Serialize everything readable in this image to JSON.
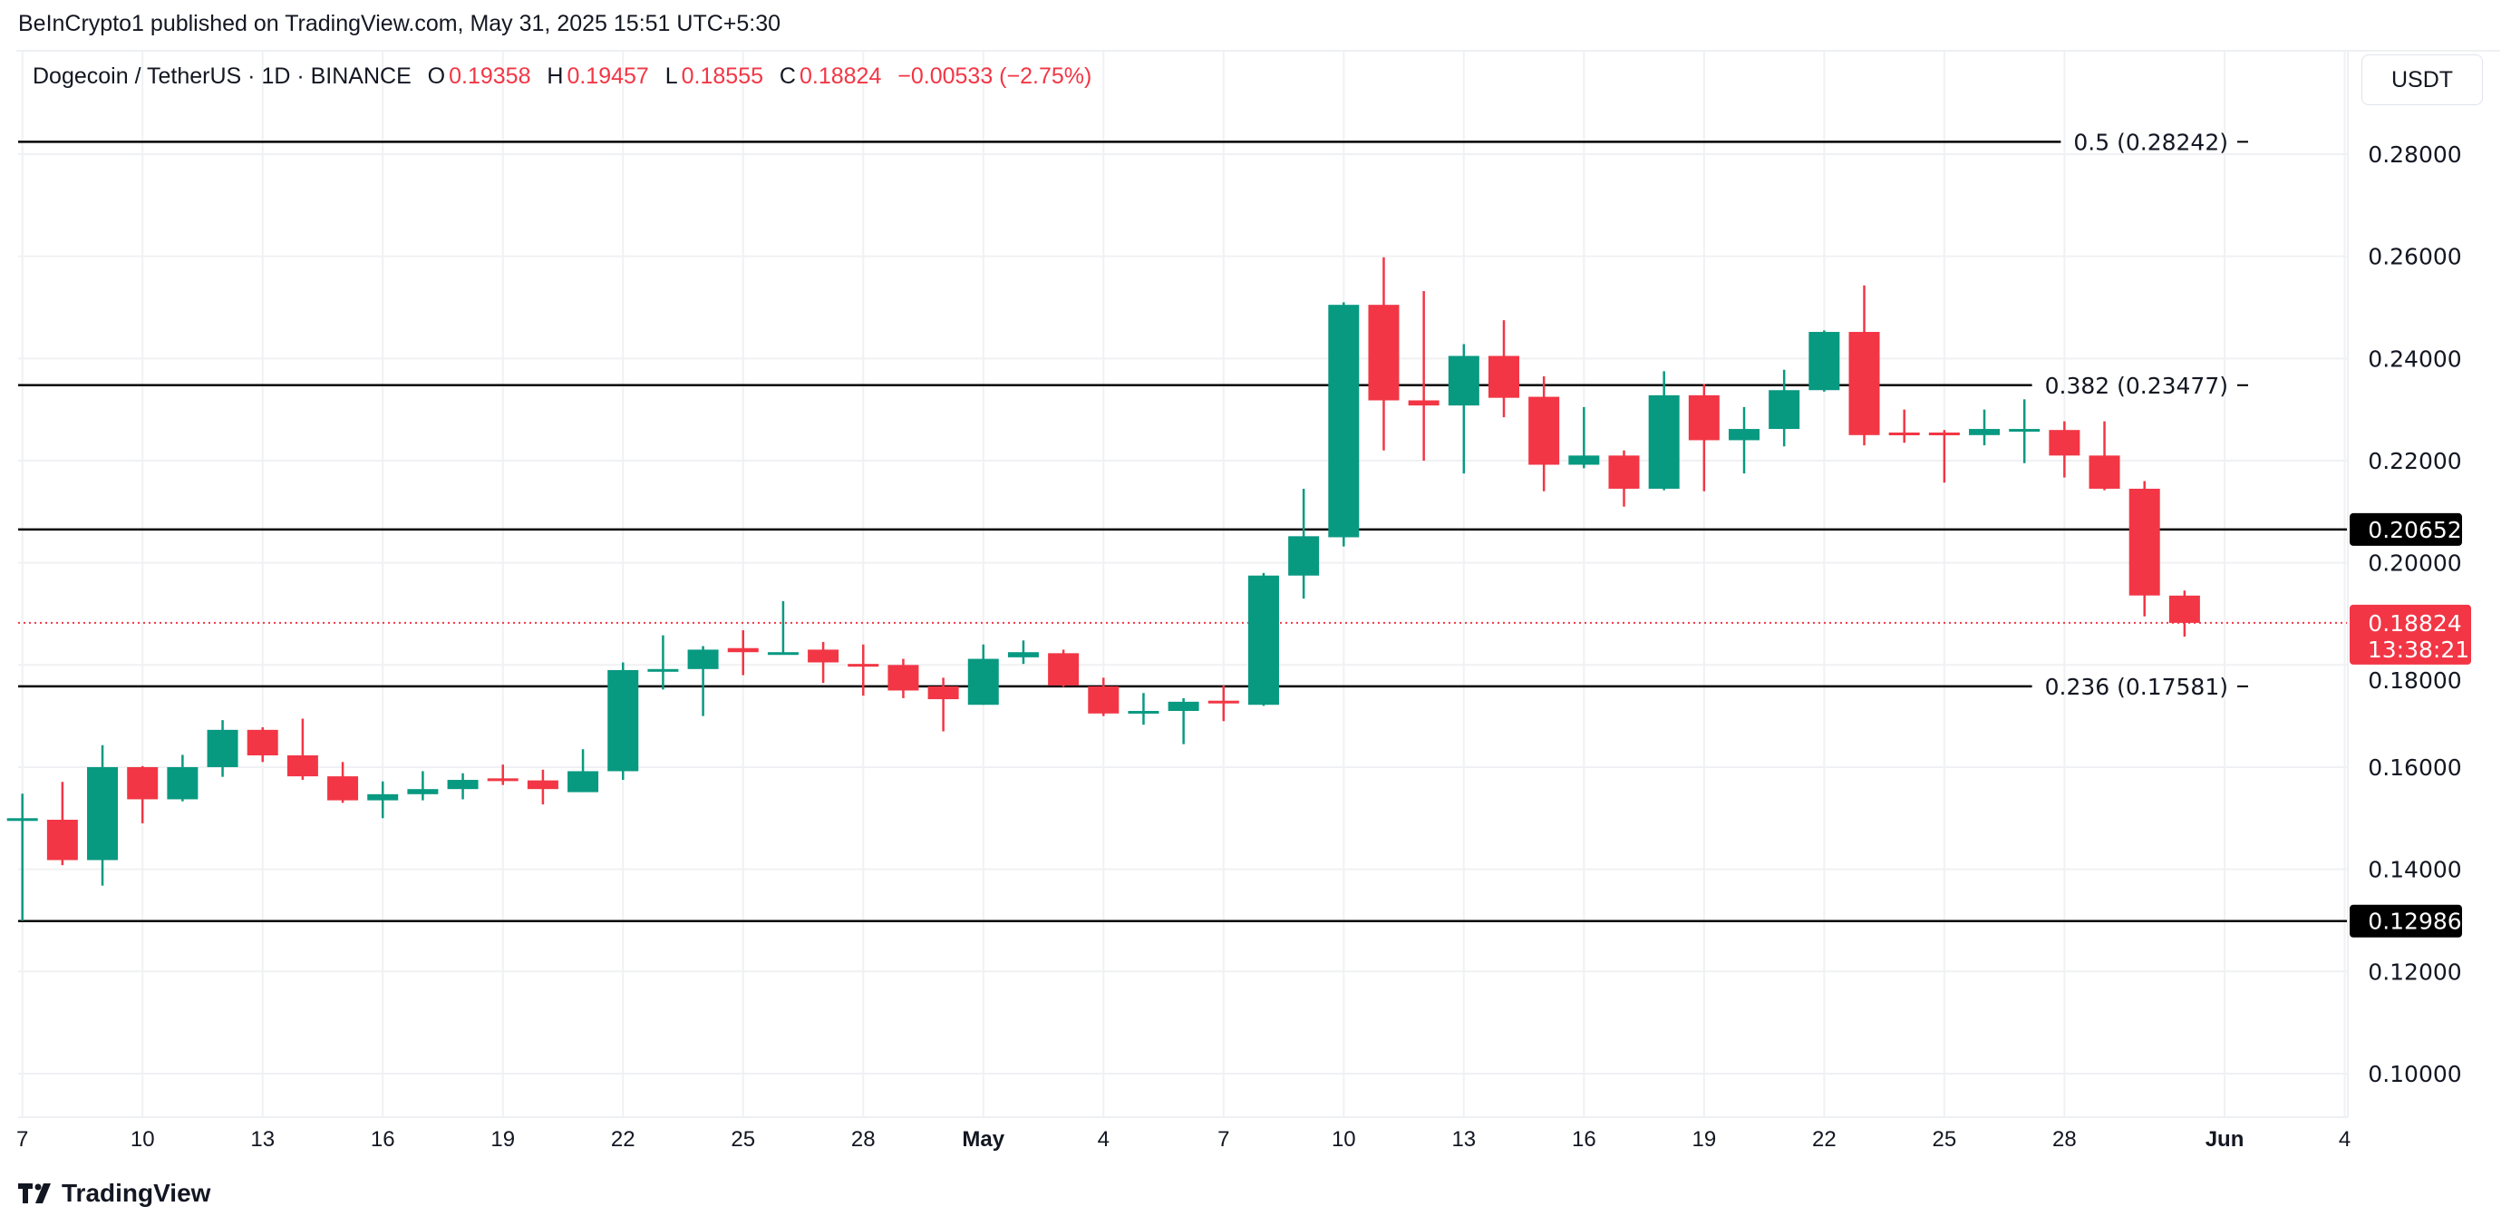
{
  "header": {
    "published": "BeInCrypto1 published on TradingView.com, May 31, 2025 15:51 UTC+5:30",
    "symbol": "Dogecoin / TetherUS · 1D · BINANCE",
    "o_label": "O",
    "o_value": "0.19358",
    "h_label": "H",
    "h_value": "0.19457",
    "l_label": "L",
    "l_value": "0.18555",
    "c_label": "C",
    "c_value": "0.18824",
    "change": "−0.00533 (−2.75%)",
    "currency": "USDT"
  },
  "footer": {
    "brand": "TradingView"
  },
  "colors": {
    "up": "#089981",
    "down": "#F23645",
    "level": "#000000",
    "grid": "#f0f1f3"
  },
  "chart_data": {
    "type": "candlestick",
    "title": "Dogecoin / TetherUS · 1D · BINANCE",
    "ylim": [
      0.092,
      0.298
    ],
    "y_ticks": [
      "0.28000",
      "0.26000",
      "0.24000",
      "0.22000",
      "0.20000",
      "0.18000",
      "0.16000",
      "0.14000",
      "0.12000",
      "0.10000"
    ],
    "x_ticks": [
      {
        "date": "2025-04-07",
        "label": "7"
      },
      {
        "date": "2025-04-10",
        "label": "10"
      },
      {
        "date": "2025-04-13",
        "label": "13"
      },
      {
        "date": "2025-04-16",
        "label": "16"
      },
      {
        "date": "2025-04-19",
        "label": "19"
      },
      {
        "date": "2025-04-22",
        "label": "22"
      },
      {
        "date": "2025-04-25",
        "label": "25"
      },
      {
        "date": "2025-04-28",
        "label": "28"
      },
      {
        "date": "2025-05-01",
        "label": "May"
      },
      {
        "date": "2025-05-04",
        "label": "4"
      },
      {
        "date": "2025-05-07",
        "label": "7"
      },
      {
        "date": "2025-05-10",
        "label": "10"
      },
      {
        "date": "2025-05-13",
        "label": "13"
      },
      {
        "date": "2025-05-16",
        "label": "16"
      },
      {
        "date": "2025-05-19",
        "label": "19"
      },
      {
        "date": "2025-05-22",
        "label": "22"
      },
      {
        "date": "2025-05-25",
        "label": "25"
      },
      {
        "date": "2025-05-28",
        "label": "28"
      },
      {
        "date": "2025-06-01",
        "label": "Jun"
      },
      {
        "date": "2025-06-04",
        "label": "4"
      }
    ],
    "grid": true,
    "fib_levels": [
      {
        "label": "0.5 (0.28242)",
        "value": 0.28242
      },
      {
        "label": "0.382 (0.23477)",
        "value": 0.23477
      },
      {
        "label": "0.236 (0.17581)",
        "value": 0.17581
      }
    ],
    "horizontal_levels": [
      {
        "label": "0.20652",
        "value": 0.20652
      },
      {
        "label": "0.12986",
        "value": 0.12986
      }
    ],
    "last_price": {
      "value": 0.18824,
      "label": "0.18824",
      "countdown": "13:38:21"
    },
    "candles": [
      {
        "date": "2025-04-07",
        "o": 0.1498,
        "h": 0.1548,
        "l": 0.1299,
        "c": 0.15
      },
      {
        "date": "2025-04-08",
        "o": 0.1497,
        "h": 0.1571,
        "l": 0.1408,
        "c": 0.1418
      },
      {
        "date": "2025-04-09",
        "o": 0.1418,
        "h": 0.1643,
        "l": 0.1368,
        "c": 0.16
      },
      {
        "date": "2025-04-10",
        "o": 0.16,
        "h": 0.1602,
        "l": 0.149,
        "c": 0.1537
      },
      {
        "date": "2025-04-11",
        "o": 0.1537,
        "h": 0.1624,
        "l": 0.1533,
        "c": 0.16
      },
      {
        "date": "2025-04-12",
        "o": 0.16,
        "h": 0.1692,
        "l": 0.1581,
        "c": 0.1673
      },
      {
        "date": "2025-04-13",
        "o": 0.1673,
        "h": 0.1678,
        "l": 0.161,
        "c": 0.1623
      },
      {
        "date": "2025-04-14",
        "o": 0.1623,
        "h": 0.1695,
        "l": 0.1575,
        "c": 0.1582
      },
      {
        "date": "2025-04-15",
        "o": 0.1582,
        "h": 0.161,
        "l": 0.153,
        "c": 0.1535
      },
      {
        "date": "2025-04-16",
        "o": 0.1535,
        "h": 0.1572,
        "l": 0.15,
        "c": 0.1547
      },
      {
        "date": "2025-04-17",
        "o": 0.1547,
        "h": 0.1592,
        "l": 0.1535,
        "c": 0.1557
      },
      {
        "date": "2025-04-18",
        "o": 0.1557,
        "h": 0.1588,
        "l": 0.1537,
        "c": 0.1575
      },
      {
        "date": "2025-04-19",
        "o": 0.1578,
        "h": 0.1605,
        "l": 0.1565,
        "c": 0.1574
      },
      {
        "date": "2025-04-20",
        "o": 0.1574,
        "h": 0.1595,
        "l": 0.1527,
        "c": 0.1557
      },
      {
        "date": "2025-04-21",
        "o": 0.1551,
        "h": 0.1635,
        "l": 0.1551,
        "c": 0.1592
      },
      {
        "date": "2025-04-22",
        "o": 0.1592,
        "h": 0.1805,
        "l": 0.1575,
        "c": 0.179
      },
      {
        "date": "2025-04-23",
        "o": 0.179,
        "h": 0.1858,
        "l": 0.1752,
        "c": 0.1792
      },
      {
        "date": "2025-04-24",
        "o": 0.1792,
        "h": 0.1837,
        "l": 0.17,
        "c": 0.183
      },
      {
        "date": "2025-04-25",
        "o": 0.1833,
        "h": 0.1868,
        "l": 0.178,
        "c": 0.1825
      },
      {
        "date": "2025-04-26",
        "o": 0.1822,
        "h": 0.1925,
        "l": 0.182,
        "c": 0.1825
      },
      {
        "date": "2025-04-27",
        "o": 0.183,
        "h": 0.1845,
        "l": 0.1765,
        "c": 0.1805
      },
      {
        "date": "2025-04-28",
        "o": 0.1802,
        "h": 0.184,
        "l": 0.174,
        "c": 0.18
      },
      {
        "date": "2025-04-29",
        "o": 0.18,
        "h": 0.1812,
        "l": 0.1735,
        "c": 0.175
      },
      {
        "date": "2025-04-30",
        "o": 0.1758,
        "h": 0.1775,
        "l": 0.167,
        "c": 0.1733
      },
      {
        "date": "2025-05-01",
        "o": 0.1722,
        "h": 0.184,
        "l": 0.1722,
        "c": 0.1812
      },
      {
        "date": "2025-05-02",
        "o": 0.1815,
        "h": 0.1848,
        "l": 0.1802,
        "c": 0.1825
      },
      {
        "date": "2025-05-03",
        "o": 0.1823,
        "h": 0.183,
        "l": 0.1757,
        "c": 0.176
      },
      {
        "date": "2025-05-04",
        "o": 0.1758,
        "h": 0.1775,
        "l": 0.17,
        "c": 0.1705
      },
      {
        "date": "2025-05-05",
        "o": 0.1707,
        "h": 0.1745,
        "l": 0.1683,
        "c": 0.171
      },
      {
        "date": "2025-05-06",
        "o": 0.171,
        "h": 0.1735,
        "l": 0.1645,
        "c": 0.1728
      },
      {
        "date": "2025-05-07",
        "o": 0.173,
        "h": 0.176,
        "l": 0.169,
        "c": 0.1728
      },
      {
        "date": "2025-05-08",
        "o": 0.1722,
        "h": 0.198,
        "l": 0.172,
        "c": 0.1975
      },
      {
        "date": "2025-05-09",
        "o": 0.1975,
        "h": 0.2145,
        "l": 0.193,
        "c": 0.2052
      },
      {
        "date": "2025-05-10",
        "o": 0.205,
        "h": 0.251,
        "l": 0.2032,
        "c": 0.2505
      },
      {
        "date": "2025-05-11",
        "o": 0.2505,
        "h": 0.2598,
        "l": 0.222,
        "c": 0.2318
      },
      {
        "date": "2025-05-12",
        "o": 0.2318,
        "h": 0.2532,
        "l": 0.22,
        "c": 0.2308
      },
      {
        "date": "2025-05-13",
        "o": 0.2308,
        "h": 0.2428,
        "l": 0.2175,
        "c": 0.2405
      },
      {
        "date": "2025-05-14",
        "o": 0.2405,
        "h": 0.2475,
        "l": 0.2285,
        "c": 0.2323
      },
      {
        "date": "2025-05-15",
        "o": 0.2325,
        "h": 0.2365,
        "l": 0.214,
        "c": 0.2192
      },
      {
        "date": "2025-05-16",
        "o": 0.2192,
        "h": 0.2305,
        "l": 0.2185,
        "c": 0.221
      },
      {
        "date": "2025-05-17",
        "o": 0.221,
        "h": 0.222,
        "l": 0.211,
        "c": 0.2145
      },
      {
        "date": "2025-05-18",
        "o": 0.2145,
        "h": 0.2375,
        "l": 0.2142,
        "c": 0.2328
      },
      {
        "date": "2025-05-19",
        "o": 0.2328,
        "h": 0.235,
        "l": 0.214,
        "c": 0.224
      },
      {
        "date": "2025-05-20",
        "o": 0.224,
        "h": 0.2305,
        "l": 0.2175,
        "c": 0.2262
      },
      {
        "date": "2025-05-21",
        "o": 0.2262,
        "h": 0.2378,
        "l": 0.2228,
        "c": 0.2338
      },
      {
        "date": "2025-05-22",
        "o": 0.2338,
        "h": 0.2455,
        "l": 0.2335,
        "c": 0.2452
      },
      {
        "date": "2025-05-23",
        "o": 0.2452,
        "h": 0.2543,
        "l": 0.223,
        "c": 0.225
      },
      {
        "date": "2025-05-24",
        "o": 0.2255,
        "h": 0.23,
        "l": 0.2235,
        "c": 0.2252
      },
      {
        "date": "2025-05-25",
        "o": 0.2255,
        "h": 0.226,
        "l": 0.2157,
        "c": 0.225
      },
      {
        "date": "2025-05-26",
        "o": 0.225,
        "h": 0.23,
        "l": 0.223,
        "c": 0.2262
      },
      {
        "date": "2025-05-27",
        "o": 0.226,
        "h": 0.232,
        "l": 0.2195,
        "c": 0.2262
      },
      {
        "date": "2025-05-28",
        "o": 0.226,
        "h": 0.2277,
        "l": 0.2167,
        "c": 0.221
      },
      {
        "date": "2025-05-29",
        "o": 0.221,
        "h": 0.2277,
        "l": 0.2142,
        "c": 0.2145
      },
      {
        "date": "2025-05-30",
        "o": 0.2145,
        "h": 0.216,
        "l": 0.1895,
        "c": 0.1936
      },
      {
        "date": "2025-05-31",
        "o": 0.19358,
        "h": 0.19457,
        "l": 0.18555,
        "c": 0.18824
      }
    ]
  }
}
